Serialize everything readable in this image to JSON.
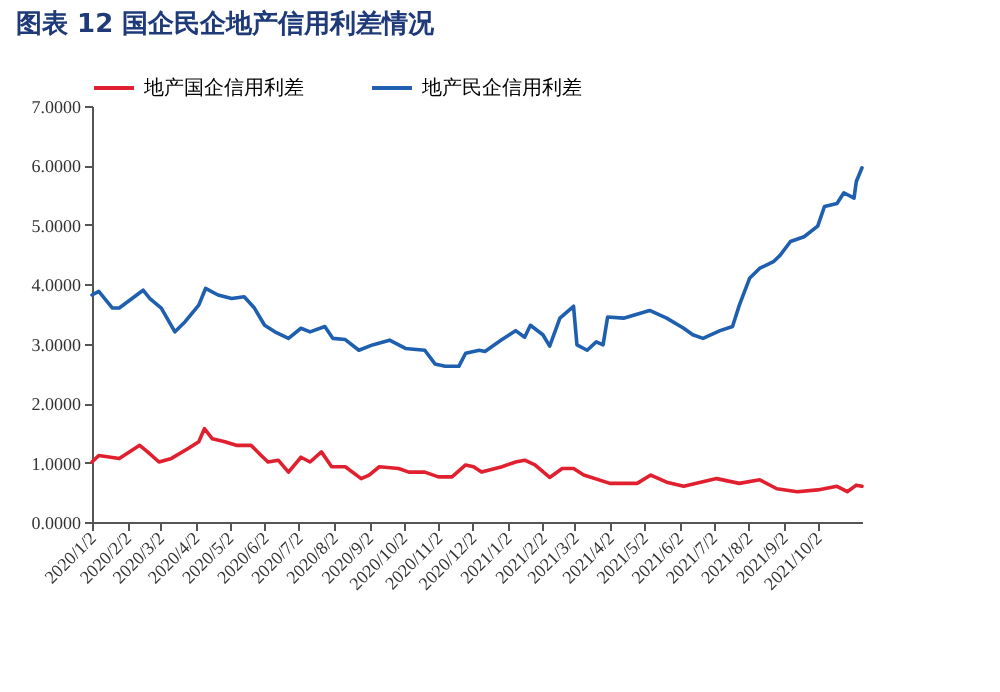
{
  "chart_data": {
    "type": "line",
    "title": "图表 12   国企民企地产信用利差情况",
    "legend": "top",
    "grid": false,
    "marker": "none",
    "line_style": "solid",
    "ylim": [
      0,
      7
    ],
    "yticks": [
      {
        "value": 0,
        "label": "0.0000"
      },
      {
        "value": 1,
        "label": "1.0000"
      },
      {
        "value": 2,
        "label": "2.0000"
      },
      {
        "value": 3,
        "label": "3.0000"
      },
      {
        "value": 4,
        "label": "4.0000"
      },
      {
        "value": 5,
        "label": "5.0000"
      },
      {
        "value": 6,
        "label": "6.0000"
      },
      {
        "value": 7,
        "label": "7.0000"
      }
    ],
    "xlim": [
      "2020-01-02",
      "2021-11-10"
    ],
    "xticks": [
      {
        "value": "2020-01-02",
        "label": "2020/1/2"
      },
      {
        "value": "2020-02-02",
        "label": "2020/2/2"
      },
      {
        "value": "2020-03-02",
        "label": "2020/3/2"
      },
      {
        "value": "2020-04-02",
        "label": "2020/4/2"
      },
      {
        "value": "2020-05-02",
        "label": "2020/5/2"
      },
      {
        "value": "2020-06-02",
        "label": "2020/6/2"
      },
      {
        "value": "2020-07-02",
        "label": "2020/7/2"
      },
      {
        "value": "2020-08-02",
        "label": "2020/8/2"
      },
      {
        "value": "2020-09-02",
        "label": "2020/9/2"
      },
      {
        "value": "2020-10-02",
        "label": "2020/10/2"
      },
      {
        "value": "2020-11-02",
        "label": "2020/11/2"
      },
      {
        "value": "2020-12-02",
        "label": "2020/12/2"
      },
      {
        "value": "2021-01-02",
        "label": "2021/1/2"
      },
      {
        "value": "2021-02-02",
        "label": "2021/2/2"
      },
      {
        "value": "2021-03-02",
        "label": "2021/3/2"
      },
      {
        "value": "2021-04-02",
        "label": "2021/4/2"
      },
      {
        "value": "2021-05-02",
        "label": "2021/5/2"
      },
      {
        "value": "2021-06-02",
        "label": "2021/6/2"
      },
      {
        "value": "2021-07-02",
        "label": "2021/7/2"
      },
      {
        "value": "2021-08-02",
        "label": "2021/8/2"
      },
      {
        "value": "2021-09-02",
        "label": "2021/9/2"
      },
      {
        "value": "2021-10-02",
        "label": "2021/10/2"
      }
    ],
    "series": [
      {
        "name": "地产国企信用利差",
        "color": "#e0202e",
        "x": [
          "2020-01-02",
          "2020-01-08",
          "2020-01-26",
          "2020-02-13",
          "2020-02-20",
          "2020-03-01",
          "2020-03-12",
          "2020-03-27",
          "2020-04-05",
          "2020-04-10",
          "2020-04-17",
          "2020-04-28",
          "2020-05-08",
          "2020-05-21",
          "2020-05-30",
          "2020-06-05",
          "2020-06-14",
          "2020-06-23",
          "2020-07-04",
          "2020-07-12",
          "2020-07-22",
          "2020-07-31",
          "2020-08-12",
          "2020-08-26",
          "2020-09-02",
          "2020-09-11",
          "2020-09-28",
          "2020-10-07",
          "2020-10-21",
          "2020-11-02",
          "2020-11-14",
          "2020-11-26",
          "2020-12-03",
          "2020-12-10",
          "2020-12-28",
          "2021-01-09",
          "2021-01-17",
          "2021-01-26",
          "2021-02-08",
          "2021-02-19",
          "2021-03-01",
          "2021-03-10",
          "2021-04-02",
          "2021-04-26",
          "2021-05-08",
          "2021-05-22",
          "2021-06-06",
          "2021-07-05",
          "2021-07-25",
          "2021-08-12",
          "2021-08-27",
          "2021-09-14",
          "2021-10-02",
          "2021-10-19",
          "2021-10-28",
          "2021-11-05",
          "2021-11-10"
        ],
        "values": [
          1.01,
          1.12,
          1.07,
          1.29,
          1.18,
          1.01,
          1.07,
          1.24,
          1.35,
          1.57,
          1.4,
          1.35,
          1.29,
          1.29,
          1.12,
          1.01,
          1.04,
          0.84,
          1.09,
          1.01,
          1.18,
          0.93,
          0.93,
          0.73,
          0.79,
          0.93,
          0.9,
          0.84,
          0.84,
          0.76,
          0.76,
          0.96,
          0.93,
          0.84,
          0.93,
          1.01,
          1.04,
          0.96,
          0.75,
          0.9,
          0.9,
          0.79,
          0.65,
          0.65,
          0.79,
          0.67,
          0.6,
          0.73,
          0.65,
          0.71,
          0.56,
          0.51,
          0.54,
          0.6,
          0.51,
          0.62,
          0.6
        ]
      },
      {
        "name": "地产民企信用利差",
        "color": "#1f5fb0",
        "x": [
          "2020-01-02",
          "2020-01-08",
          "2020-01-20",
          "2020-01-26",
          "2020-02-16",
          "2020-02-22",
          "2020-03-03",
          "2020-03-15",
          "2020-03-24",
          "2020-04-05",
          "2020-04-11",
          "2020-04-22",
          "2020-05-04",
          "2020-05-15",
          "2020-05-24",
          "2020-06-02",
          "2020-06-11",
          "2020-06-23",
          "2020-07-04",
          "2020-07-12",
          "2020-07-25",
          "2020-08-01",
          "2020-08-12",
          "2020-08-24",
          "2020-09-05",
          "2020-09-20",
          "2020-10-04",
          "2020-10-21",
          "2020-10-30",
          "2020-11-08",
          "2020-11-20",
          "2020-11-26",
          "2020-12-08",
          "2020-12-13",
          "2020-12-28",
          "2021-01-09",
          "2021-01-17",
          "2021-01-22",
          "2021-02-02",
          "2021-02-08",
          "2021-02-17",
          "2021-03-01",
          "2021-03-04",
          "2021-03-13",
          "2021-03-21",
          "2021-03-27",
          "2021-03-31",
          "2021-04-14",
          "2021-05-07",
          "2021-05-22",
          "2021-06-06",
          "2021-06-14",
          "2021-06-23",
          "2021-07-08",
          "2021-07-19",
          "2021-07-25",
          "2021-08-03",
          "2021-08-12",
          "2021-08-24",
          "2021-08-30",
          "2021-09-08",
          "2021-09-20",
          "2021-10-02",
          "2021-10-08",
          "2021-10-19",
          "2021-10-25",
          "2021-11-03",
          "2021-11-05",
          "2021-11-10"
        ],
        "values": [
          3.82,
          3.88,
          3.6,
          3.6,
          3.9,
          3.76,
          3.6,
          3.2,
          3.37,
          3.65,
          3.93,
          3.82,
          3.76,
          3.79,
          3.6,
          3.31,
          3.2,
          3.09,
          3.26,
          3.2,
          3.29,
          3.09,
          3.07,
          2.89,
          2.98,
          3.06,
          2.92,
          2.89,
          2.66,
          2.62,
          2.62,
          2.84,
          2.89,
          2.87,
          3.07,
          3.22,
          3.11,
          3.31,
          3.15,
          2.96,
          3.43,
          3.63,
          2.98,
          2.89,
          3.03,
          2.98,
          3.45,
          3.43,
          3.56,
          3.43,
          3.26,
          3.15,
          3.09,
          3.22,
          3.29,
          3.65,
          4.1,
          4.27,
          4.38,
          4.49,
          4.72,
          4.8,
          4.98,
          5.31,
          5.36,
          5.54,
          5.45,
          5.73,
          5.96
        ]
      }
    ]
  }
}
